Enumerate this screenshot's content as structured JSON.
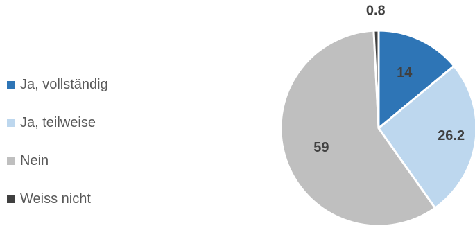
{
  "chart_data": {
    "type": "pie",
    "categories": [
      "Ja, vollständig",
      "Ja, teilweise",
      "Nein",
      "Weiss nicht"
    ],
    "values": [
      14,
      26.2,
      59,
      0.8
    ],
    "data_labels": [
      "14",
      "26.2",
      "59",
      "0.8"
    ],
    "colors": [
      "#2E75B6",
      "#BDD7EE",
      "#BFBFBF",
      "#404040"
    ],
    "legend_position": "left",
    "title": ""
  },
  "legend": {
    "items": [
      {
        "label": "Ja, vollständig",
        "color": "#2E75B6"
      },
      {
        "label": "Ja, teilweise",
        "color": "#BDD7EE"
      },
      {
        "label": "Nein",
        "color": "#BFBFBF"
      },
      {
        "label": "Weiss nicht",
        "color": "#404040"
      }
    ]
  }
}
